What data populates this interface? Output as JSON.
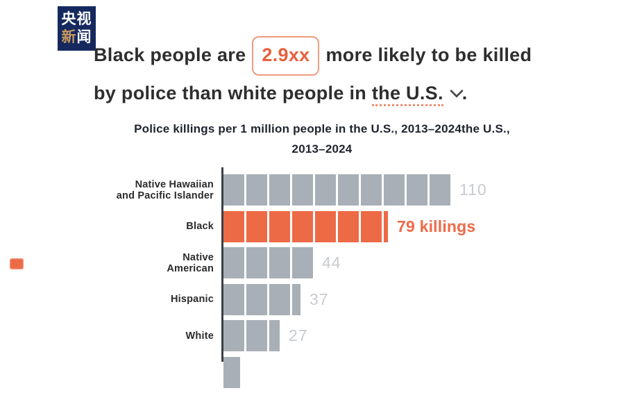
{
  "branding": {
    "channel_name": "央视新闻",
    "logo_row1": "央视",
    "logo_row2_accent": "新",
    "logo_row2_rest": "闻",
    "logo_bg": "#15295E",
    "logo_accent": "#C9995F"
  },
  "headline": {
    "line1_before": "Black people are",
    "highlight_value": "2.9xx",
    "line1_after": "more likely to be killed",
    "line2_before": "by police than white people in",
    "line2_underlined": "the U.S.",
    "line2_end": "."
  },
  "chart_data": {
    "type": "bar",
    "orientation": "horizontal",
    "title_line1": "Police killings per 1 million people in the U.S., 2013–2024the U.S.,",
    "title_line2": "2013–2024",
    "categories": [
      "Native Hawaiian and Pacific Islander",
      "Black",
      "Native American",
      "Hispanic",
      "White"
    ],
    "values": [
      110,
      79,
      44,
      37,
      27
    ],
    "value_labels": [
      "110",
      "79 killings",
      "44",
      "37",
      "27"
    ],
    "highlight_index": 1,
    "units_per_segment": 11,
    "xlim": [
      0,
      121
    ],
    "grid": false,
    "legend": false,
    "rows": [
      {
        "label_lines": [
          "Native Hawaiian",
          "and Pacific Islander"
        ],
        "value": 110,
        "value_label": "110",
        "highlight": false
      },
      {
        "label_lines": [
          "Black"
        ],
        "value": 79,
        "value_label": "79 killings",
        "highlight": true
      },
      {
        "label_lines": [
          "Native",
          "American"
        ],
        "value": 44,
        "value_label": "44",
        "highlight": false
      },
      {
        "label_lines": [
          "Hispanic"
        ],
        "value": 37,
        "value_label": "37",
        "highlight": false
      },
      {
        "label_lines": [
          "White"
        ],
        "value": 27,
        "value_label": "27",
        "highlight": false
      }
    ],
    "partial_bottom_bar": {
      "visible_width_segments": 0.73
    },
    "colors": {
      "bar": "#A9AFB6",
      "highlight": "#ED6A47",
      "value_text": "#C8CBCF",
      "axis": "#3B3F46",
      "label_text": "#2B2B2B",
      "title_text": "#20242E",
      "accent": "#E8603C"
    }
  }
}
